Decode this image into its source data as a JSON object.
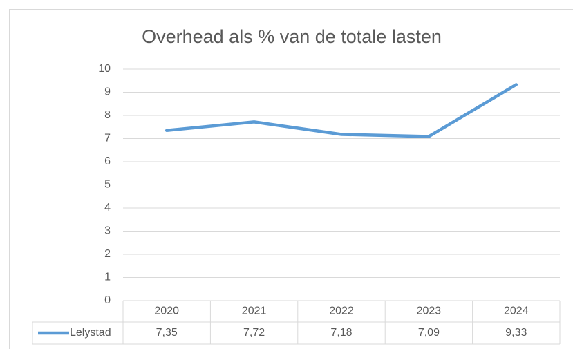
{
  "chart_data": {
    "type": "line",
    "title": "Overhead als % van de totale lasten",
    "categories": [
      "2020",
      "2021",
      "2022",
      "2023",
      "2024"
    ],
    "series": [
      {
        "name": "Lelystad",
        "color": "#5b9bd5",
        "values": [
          7.35,
          7.72,
          7.18,
          7.09,
          9.33
        ],
        "value_labels": [
          "7,35",
          "7,72",
          "7,18",
          "7,09",
          "9,33"
        ]
      }
    ],
    "ylim": [
      0,
      10
    ],
    "yticks": [
      0,
      1,
      2,
      3,
      4,
      5,
      6,
      7,
      8,
      9,
      10
    ],
    "grid": true,
    "data_table": true
  }
}
